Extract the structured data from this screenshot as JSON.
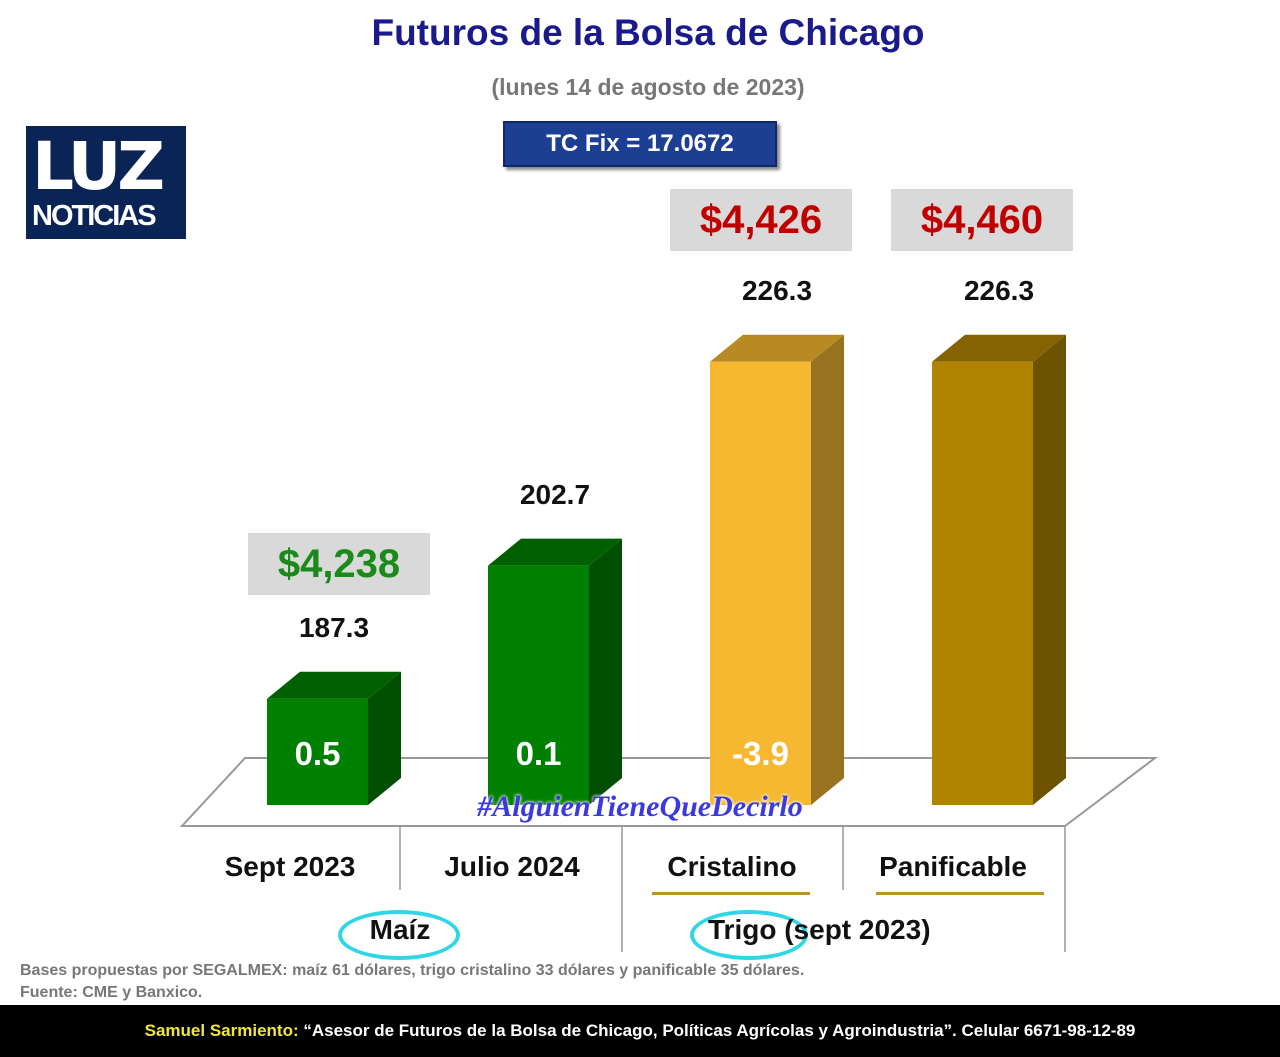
{
  "title": "Futuros de la Bolsa de Chicago",
  "subtitle": "(lunes 14 de agosto de 2023)",
  "tc_fix": "TC Fix = 17.0672",
  "logo": {
    "line1": "LUZ",
    "line2": "NOTICIAS"
  },
  "hashtag": "#AlguienTieneQueDecirlo",
  "notes": [
    "Bases propuestas por SEGALMEX: maíz 61 dólares, trigo cristalino 33 dólares y panificable 35 dólares.",
    "Fuente: CME y Banxico."
  ],
  "footer": {
    "name": "Samuel Sarmiento:",
    "text": " “Asesor de Futuros de la Bolsa de Chicago, Políticas Agrícolas y Agroindustria”. Celular 6671-98-12-89"
  },
  "chart_data": {
    "type": "bar",
    "categories": [
      "Sept 2023",
      "Julio 2024",
      "Cristalino",
      "Panificable"
    ],
    "groups": [
      {
        "label": "Maíz",
        "categories": [
          "Sept 2023",
          "Julio 2024"
        ]
      },
      {
        "label": "Trigo",
        "suffix": " (sept 2023)",
        "categories": [
          "Cristalino",
          "Panificable"
        ]
      }
    ],
    "values": [
      187.3,
      202.7,
      226.3,
      226.3
    ],
    "value_labels": [
      "187.3",
      "202.7",
      "226.3",
      "226.3"
    ],
    "changes": [
      "0.5",
      "0.1",
      "-3.9",
      ""
    ],
    "prices_mxn": [
      "$4,238",
      "",
      "$4,426",
      "$4,460"
    ],
    "price_colors": [
      "#1a8a1a",
      "",
      "#c00000",
      "#c00000"
    ],
    "colors": [
      "#008000",
      "#008000",
      "#f5b830",
      "#b08400"
    ],
    "ylim": [
      175,
      235
    ],
    "grid": false
  }
}
